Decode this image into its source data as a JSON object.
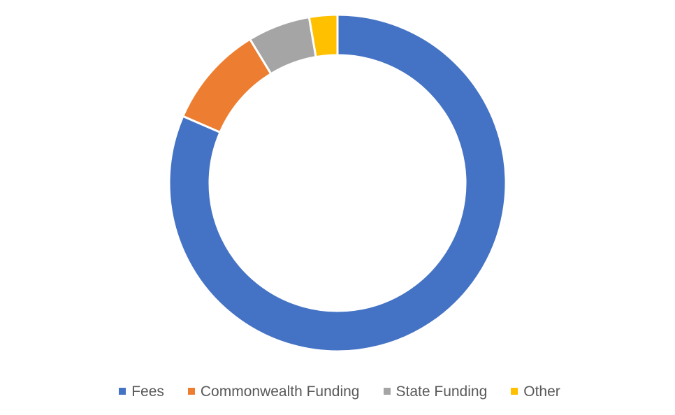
{
  "chart_data": {
    "type": "pie",
    "variant": "donut",
    "title": "",
    "categories": [
      "Fees",
      "Commonwealth Funding",
      "State Funding",
      "Other"
    ],
    "values": [
      81.5,
      9.8,
      6.0,
      2.7
    ],
    "unit": "percent (estimated share)",
    "colors": [
      "#4472C4",
      "#ED7D31",
      "#A5A5A5",
      "#FFC000"
    ],
    "start_angle": "12 o'clock",
    "direction": "clockwise",
    "legend": {
      "position": "bottom",
      "entries": [
        {
          "label": "Fees",
          "color": "#4472C4"
        },
        {
          "label": "Commonwealth Funding",
          "color": "#ED7D31"
        },
        {
          "label": "State Funding",
          "color": "#A5A5A5"
        },
        {
          "label": "Other",
          "color": "#FFC000"
        }
      ]
    }
  }
}
